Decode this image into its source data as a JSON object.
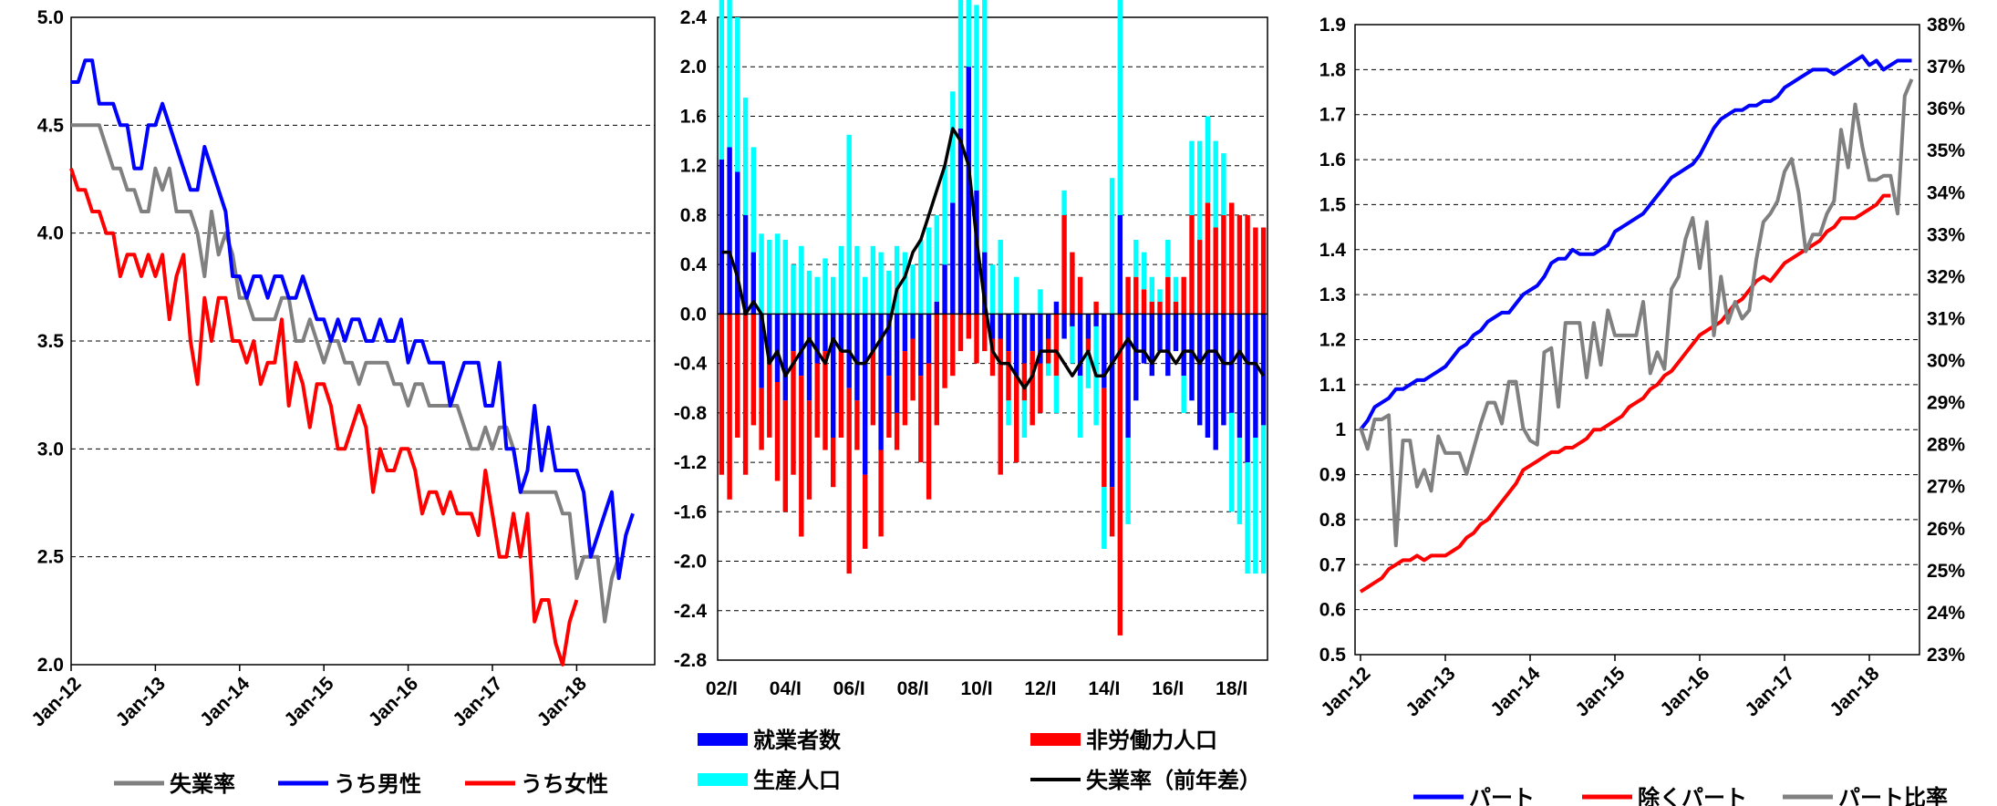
{
  "colors": {
    "black": "#000000",
    "blue": "#0000ff",
    "red": "#ff0000",
    "gray": "#808080",
    "cyan": "#00ffff"
  },
  "chart_data": [
    {
      "type": "line",
      "ylim": [
        2.0,
        5.0
      ],
      "yticks": [
        "5.0",
        "4.5",
        "4.0",
        "3.5",
        "3.0",
        "2.5",
        "2.0"
      ],
      "xticks": [
        "Jan-12",
        "Jan-13",
        "Jan-14",
        "Jan-15",
        "Jan-16",
        "Jan-17",
        "Jan-18"
      ],
      "grid": "horizontal dashed",
      "legend_position": "bottom",
      "x_start": "2012-01",
      "series": [
        {
          "name": "失業率",
          "color": "#808080",
          "values": [
            4.5,
            4.5,
            4.5,
            4.5,
            4.5,
            4.4,
            4.3,
            4.3,
            4.2,
            4.2,
            4.1,
            4.1,
            4.3,
            4.2,
            4.3,
            4.1,
            4.1,
            4.1,
            4.0,
            3.8,
            4.1,
            3.9,
            4.0,
            3.9,
            3.7,
            3.7,
            3.6,
            3.6,
            3.6,
            3.6,
            3.7,
            3.7,
            3.5,
            3.5,
            3.6,
            3.5,
            3.4,
            3.5,
            3.5,
            3.4,
            3.4,
            3.3,
            3.4,
            3.4,
            3.4,
            3.4,
            3.3,
            3.3,
            3.2,
            3.3,
            3.3,
            3.2,
            3.2,
            3.2,
            3.2,
            3.2,
            3.1,
            3.0,
            3.0,
            3.1,
            3.0,
            3.1,
            3.1,
            3.0,
            2.8,
            2.8,
            2.8,
            2.8,
            2.8,
            2.8,
            2.7,
            2.7,
            2.4,
            2.5,
            2.5,
            2.5,
            2.2,
            2.4,
            2.5
          ]
        },
        {
          "name": "うち男性",
          "color": "#0000ff",
          "values": [
            4.7,
            4.7,
            4.8,
            4.8,
            4.6,
            4.6,
            4.6,
            4.5,
            4.5,
            4.3,
            4.3,
            4.5,
            4.5,
            4.6,
            4.5,
            4.4,
            4.3,
            4.2,
            4.2,
            4.4,
            4.3,
            4.2,
            4.1,
            3.8,
            3.8,
            3.7,
            3.8,
            3.8,
            3.7,
            3.8,
            3.8,
            3.7,
            3.7,
            3.8,
            3.7,
            3.6,
            3.6,
            3.5,
            3.6,
            3.5,
            3.6,
            3.6,
            3.5,
            3.5,
            3.6,
            3.5,
            3.5,
            3.6,
            3.4,
            3.5,
            3.5,
            3.4,
            3.4,
            3.4,
            3.2,
            3.3,
            3.4,
            3.4,
            3.4,
            3.2,
            3.2,
            3.4,
            3.0,
            3.0,
            2.8,
            2.9,
            3.2,
            2.9,
            3.1,
            2.9,
            2.9,
            2.9,
            2.9,
            2.8,
            2.5,
            2.6,
            2.7,
            2.8,
            2.4,
            2.6,
            2.7
          ]
        },
        {
          "name": "うち女性",
          "color": "#ff0000",
          "values": [
            4.3,
            4.2,
            4.2,
            4.1,
            4.1,
            4.0,
            4.0,
            3.8,
            3.9,
            3.9,
            3.8,
            3.9,
            3.8,
            3.9,
            3.6,
            3.8,
            3.9,
            3.5,
            3.3,
            3.7,
            3.5,
            3.7,
            3.7,
            3.5,
            3.5,
            3.4,
            3.5,
            3.3,
            3.4,
            3.4,
            3.6,
            3.2,
            3.4,
            3.3,
            3.1,
            3.3,
            3.3,
            3.2,
            3.0,
            3.0,
            3.1,
            3.2,
            3.1,
            2.8,
            3.0,
            2.9,
            2.9,
            3.0,
            3.0,
            2.9,
            2.7,
            2.8,
            2.8,
            2.7,
            2.8,
            2.7,
            2.7,
            2.7,
            2.6,
            2.9,
            2.7,
            2.5,
            2.5,
            2.7,
            2.5,
            2.7,
            2.2,
            2.3,
            2.3,
            2.1,
            2.0,
            2.2,
            2.3
          ]
        }
      ]
    },
    {
      "type": "bar",
      "ylim": [
        -2.8,
        2.4
      ],
      "yticks": [
        "2.4",
        "2.0",
        "1.6",
        "1.2",
        "0.8",
        "0.4",
        "0.0",
        "-0.4",
        "-0.8",
        "-1.2",
        "-1.6",
        "-2.0",
        "-2.4",
        "-2.8"
      ],
      "xticks": [
        "02/I",
        "04/I",
        "06/I",
        "08/I",
        "10/I",
        "12/I",
        "14/I",
        "16/I",
        "18/I"
      ],
      "grid": "horizontal dashed",
      "legend_position": "bottom",
      "x_start": "2002 Q1",
      "series": [
        {
          "name": "就業者数",
          "color": "#0000ff",
          "values": [
            1.25,
            1.35,
            1.15,
            0.8,
            0.5,
            -0.6,
            -0.4,
            -0.55,
            -0.7,
            -0.3,
            -0.5,
            -0.7,
            -0.4,
            -0.3,
            -1.0,
            -0.3,
            -0.6,
            -0.7,
            -1.3,
            -0.3,
            -1.1,
            -0.5,
            -0.8,
            -0.3,
            -0.2,
            -0.5,
            -0.4,
            0.1,
            0.4,
            0.9,
            1.5,
            2.0,
            1.0,
            0.5,
            -0.2,
            -0.2,
            -0.3,
            -0.5,
            -0.4,
            -0.3,
            -0.4,
            -0.2,
            0.1,
            -0.2,
            -0.1,
            -0.5,
            -0.2,
            -0.1,
            -0.6,
            -1.4,
            0.8,
            -1.0,
            -0.7,
            -0.4,
            -0.5,
            -0.3,
            -0.5,
            -0.3,
            -0.5,
            -0.7,
            -0.9,
            -1.0,
            -1.1,
            -0.9,
            -0.8,
            -1.0,
            -1.2,
            -1.0,
            -0.9
          ]
        },
        {
          "name": "非労働力人口",
          "color": "#ff0000",
          "values": [
            -1.3,
            -1.5,
            -1.0,
            -1.3,
            -0.9,
            -0.5,
            -0.6,
            -0.8,
            -0.9,
            -1.0,
            -1.3,
            -0.8,
            -0.6,
            -0.8,
            -0.4,
            -0.7,
            -1.5,
            -0.4,
            -0.6,
            -0.6,
            -0.7,
            -0.5,
            -0.3,
            -0.6,
            -0.5,
            -0.7,
            -1.1,
            -0.9,
            -0.6,
            -0.5,
            -0.3,
            -0.2,
            -0.4,
            -0.3,
            -0.3,
            -1.1,
            -0.4,
            -0.7,
            -0.3,
            -0.6,
            -0.4,
            -0.2,
            -0.5,
            0.8,
            0.5,
            0.3,
            -0.1,
            0.1,
            -0.8,
            -0.4,
            -2.6,
            0.3,
            0.3,
            0.2,
            0.1,
            0.1,
            0.3,
            0.1,
            0.3,
            0.8,
            0.6,
            0.9,
            0.7,
            0.8,
            0.9,
            0.8,
            0.8,
            0.7,
            0.7
          ]
        },
        {
          "name": "生産人口",
          "color": "#00ffff",
          "values": [
            1.8,
            2.0,
            1.25,
            0.95,
            0.85,
            0.65,
            0.6,
            0.65,
            0.6,
            0.4,
            0.55,
            0.35,
            0.3,
            0.45,
            0.3,
            0.55,
            1.45,
            0.55,
            0.3,
            0.55,
            0.5,
            0.35,
            0.55,
            0.5,
            0.4,
            0.6,
            0.7,
            0.7,
            0.8,
            0.9,
            1.1,
            2.1,
            1.5,
            2.1,
            0.4,
            0.6,
            -0.2,
            0.3,
            -0.3,
            0.0,
            0.2,
            -0.1,
            -0.3,
            0.2,
            -0.3,
            -0.5,
            -0.3,
            -0.8,
            -0.5,
            1.1,
            2.1,
            -0.7,
            0.3,
            0.3,
            0.2,
            0.1,
            0.3,
            0.2,
            -0.3,
            0.6,
            0.8,
            0.7,
            0.7,
            0.5,
            -0.8,
            -0.7,
            -0.9,
            -1.1,
            -1.2
          ]
        },
        {
          "name": "失業率（前年差）",
          "color": "#000000",
          "type": "line",
          "values": [
            0.5,
            0.5,
            0.3,
            0.0,
            0.1,
            0.0,
            -0.4,
            -0.3,
            -0.5,
            -0.4,
            -0.3,
            -0.2,
            -0.3,
            -0.4,
            -0.2,
            -0.3,
            -0.3,
            -0.4,
            -0.4,
            -0.3,
            -0.2,
            -0.1,
            0.2,
            0.3,
            0.5,
            0.6,
            0.8,
            1.0,
            1.2,
            1.5,
            1.4,
            1.2,
            0.6,
            0.1,
            -0.3,
            -0.4,
            -0.4,
            -0.5,
            -0.6,
            -0.5,
            -0.3,
            -0.3,
            -0.3,
            -0.4,
            -0.5,
            -0.4,
            -0.3,
            -0.5,
            -0.5,
            -0.4,
            -0.3,
            -0.2,
            -0.3,
            -0.3,
            -0.4,
            -0.3,
            -0.3,
            -0.4,
            -0.3,
            -0.3,
            -0.4,
            -0.3,
            -0.3,
            -0.4,
            -0.4,
            -0.3,
            -0.4,
            -0.4,
            -0.5
          ]
        }
      ]
    },
    {
      "type": "line",
      "ylim": [
        0.5,
        1.9
      ],
      "yticks": [
        "1.9",
        "1.8",
        "1.7",
        "1.6",
        "1.5",
        "1.4",
        "1.3",
        "1.2",
        "1.1",
        "1",
        "0.9",
        "0.8",
        "0.7",
        "0.6",
        "0.5"
      ],
      "y2lim": [
        0.23,
        0.38
      ],
      "y2ticks": [
        "38%",
        "37%",
        "36%",
        "35%",
        "34%",
        "33%",
        "32%",
        "31%",
        "30%",
        "29%",
        "28%",
        "27%",
        "26%",
        "25%",
        "24%",
        "23%"
      ],
      "xticks": [
        "Jan-12",
        "Jan-13",
        "Jan-14",
        "Jan-15",
        "Jan-16",
        "Jan-17",
        "Jan-18"
      ],
      "grid": "horizontal dashed",
      "legend_position": "bottom",
      "x_start": "2012-01",
      "series": [
        {
          "name": "パート",
          "color": "#0000ff",
          "axis": "left",
          "values": [
            1.0,
            1.02,
            1.05,
            1.06,
            1.07,
            1.09,
            1.09,
            1.1,
            1.11,
            1.11,
            1.12,
            1.13,
            1.14,
            1.16,
            1.18,
            1.19,
            1.21,
            1.22,
            1.24,
            1.25,
            1.26,
            1.26,
            1.28,
            1.3,
            1.31,
            1.32,
            1.34,
            1.37,
            1.38,
            1.38,
            1.4,
            1.39,
            1.39,
            1.39,
            1.4,
            1.41,
            1.44,
            1.45,
            1.46,
            1.47,
            1.48,
            1.5,
            1.52,
            1.54,
            1.56,
            1.57,
            1.58,
            1.59,
            1.61,
            1.64,
            1.67,
            1.69,
            1.7,
            1.71,
            1.71,
            1.72,
            1.72,
            1.73,
            1.73,
            1.74,
            1.76,
            1.77,
            1.78,
            1.79,
            1.8,
            1.8,
            1.8,
            1.79,
            1.8,
            1.81,
            1.82,
            1.83,
            1.81,
            1.82,
            1.8,
            1.81,
            1.82,
            1.82,
            1.82
          ]
        },
        {
          "name": "除くパート",
          "color": "#ff0000",
          "axis": "left",
          "values": [
            0.64,
            0.65,
            0.66,
            0.67,
            0.69,
            0.7,
            0.71,
            0.71,
            0.72,
            0.71,
            0.72,
            0.72,
            0.72,
            0.73,
            0.74,
            0.76,
            0.77,
            0.79,
            0.8,
            0.82,
            0.84,
            0.86,
            0.88,
            0.91,
            0.92,
            0.93,
            0.94,
            0.95,
            0.95,
            0.96,
            0.96,
            0.97,
            0.98,
            1.0,
            1.0,
            1.01,
            1.02,
            1.03,
            1.05,
            1.06,
            1.07,
            1.09,
            1.1,
            1.12,
            1.13,
            1.15,
            1.17,
            1.19,
            1.21,
            1.22,
            1.23,
            1.24,
            1.26,
            1.28,
            1.29,
            1.31,
            1.33,
            1.34,
            1.33,
            1.35,
            1.37,
            1.38,
            1.39,
            1.4,
            1.41,
            1.42,
            1.44,
            1.45,
            1.47,
            1.47,
            1.47,
            1.48,
            1.49,
            1.5,
            1.52,
            1.52
          ]
        },
        {
          "name": "パート比率",
          "color": "#808080",
          "axis": "right",
          "values": [
            0.284,
            0.279,
            0.286,
            0.286,
            0.287,
            0.256,
            0.281,
            0.281,
            0.27,
            0.274,
            0.269,
            0.282,
            0.278,
            0.278,
            0.278,
            0.273,
            0.279,
            0.285,
            0.29,
            0.29,
            0.285,
            0.295,
            0.295,
            0.284,
            0.281,
            0.28,
            0.302,
            0.303,
            0.289,
            0.309,
            0.309,
            0.309,
            0.296,
            0.309,
            0.299,
            0.312,
            0.306,
            0.306,
            0.306,
            0.306,
            0.314,
            0.297,
            0.302,
            0.298,
            0.317,
            0.32,
            0.329,
            0.334,
            0.322,
            0.333,
            0.306,
            0.32,
            0.309,
            0.314,
            0.31,
            0.312,
            0.324,
            0.333,
            0.335,
            0.338,
            0.345,
            0.348,
            0.34,
            0.326,
            0.33,
            0.33,
            0.335,
            0.338,
            0.355,
            0.346,
            0.361,
            0.351,
            0.343,
            0.343,
            0.344,
            0.344,
            0.335,
            0.363,
            0.367
          ]
        }
      ]
    }
  ]
}
